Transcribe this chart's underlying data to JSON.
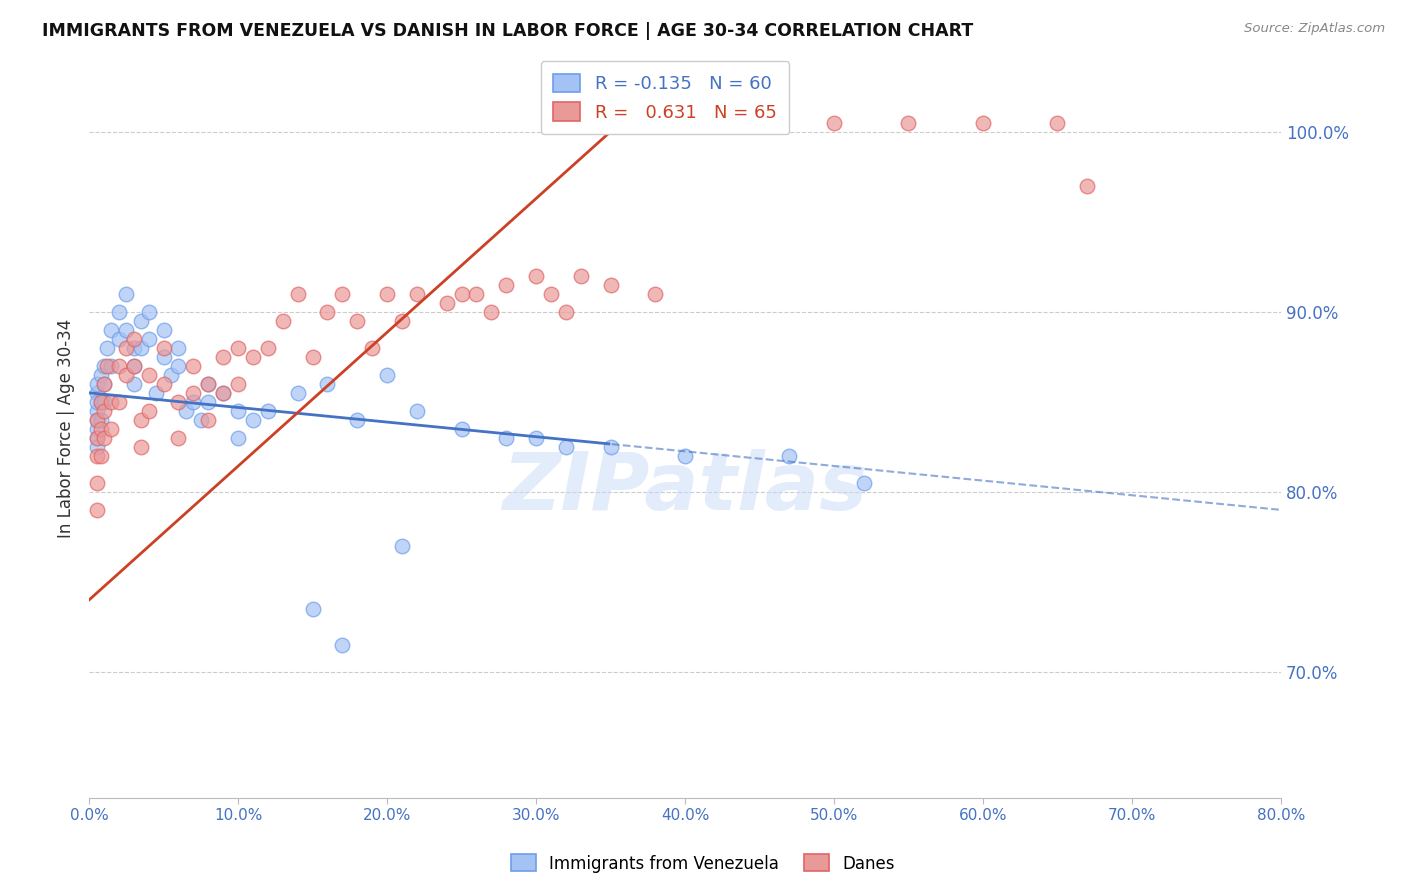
{
  "title": "IMMIGRANTS FROM VENEZUELA VS DANISH IN LABOR FORCE | AGE 30-34 CORRELATION CHART",
  "source": "Source: ZipAtlas.com",
  "ylabel": "In Labor Force | Age 30-34",
  "x_tick_labels": [
    "0.0%",
    "10.0%",
    "20.0%",
    "30.0%",
    "40.0%",
    "50.0%",
    "60.0%",
    "70.0%",
    "80.0%"
  ],
  "x_tick_vals": [
    0,
    10,
    20,
    30,
    40,
    50,
    60,
    70,
    80
  ],
  "y_tick_labels": [
    "70.0%",
    "80.0%",
    "90.0%",
    "100.0%"
  ],
  "y_tick_vals": [
    70,
    80,
    90,
    100
  ],
  "xlim": [
    0,
    80
  ],
  "ylim": [
    63,
    104
  ],
  "blue_label": "Immigrants from Venezuela",
  "pink_label": "Danes",
  "blue_R": "-0.135",
  "blue_N": "60",
  "pink_R": "0.631",
  "pink_N": "65",
  "blue_color": "#a4c2f4",
  "pink_color": "#ea9999",
  "blue_edge_color": "#6d9eeb",
  "pink_edge_color": "#e06666",
  "blue_line_color": "#4472c4",
  "pink_line_color": "#cc4125",
  "watermark": "ZIPatlas",
  "watermark_color": "#c9daf8",
  "blue_solid_end": 35,
  "pink_solid_end": 35,
  "blue_scatter_x": [
    0.5,
    0.5,
    0.5,
    0.5,
    0.5,
    0.5,
    0.5,
    0.5,
    0.8,
    0.8,
    0.8,
    1.0,
    1.0,
    1.0,
    1.2,
    1.5,
    1.5,
    2.0,
    2.0,
    2.5,
    2.5,
    3.0,
    3.0,
    3.0,
    3.5,
    3.5,
    4.0,
    4.0,
    4.5,
    5.0,
    5.0,
    5.5,
    6.0,
    6.0,
    6.5,
    7.0,
    7.5,
    8.0,
    8.0,
    9.0,
    10.0,
    10.0,
    11.0,
    12.0,
    14.0,
    15.0,
    16.0,
    17.0,
    18.0,
    20.0,
    21.0,
    22.0,
    25.0,
    28.0,
    30.0,
    32.0,
    35.0,
    40.0,
    47.0,
    52.0
  ],
  "blue_scatter_y": [
    85.5,
    84.5,
    83.5,
    85.0,
    86.0,
    84.0,
    83.0,
    82.5,
    86.5,
    85.0,
    84.0,
    87.0,
    86.0,
    85.0,
    88.0,
    89.0,
    87.0,
    90.0,
    88.5,
    91.0,
    89.0,
    88.0,
    87.0,
    86.0,
    89.5,
    88.0,
    90.0,
    88.5,
    85.5,
    89.0,
    87.5,
    86.5,
    88.0,
    87.0,
    84.5,
    85.0,
    84.0,
    86.0,
    85.0,
    85.5,
    84.5,
    83.0,
    84.0,
    84.5,
    85.5,
    73.5,
    86.0,
    71.5,
    84.0,
    86.5,
    77.0,
    84.5,
    83.5,
    83.0,
    83.0,
    82.5,
    82.5,
    82.0,
    82.0,
    80.5
  ],
  "pink_scatter_x": [
    0.5,
    0.5,
    0.5,
    0.5,
    0.5,
    0.8,
    0.8,
    0.8,
    1.0,
    1.0,
    1.0,
    1.2,
    1.5,
    1.5,
    2.0,
    2.0,
    2.5,
    2.5,
    3.0,
    3.0,
    3.5,
    3.5,
    4.0,
    4.0,
    5.0,
    5.0,
    6.0,
    6.0,
    7.0,
    7.0,
    8.0,
    8.0,
    9.0,
    9.0,
    10.0,
    10.0,
    11.0,
    12.0,
    13.0,
    14.0,
    15.0,
    16.0,
    17.0,
    18.0,
    19.0,
    20.0,
    21.0,
    22.0,
    24.0,
    25.0,
    26.0,
    27.0,
    28.0,
    30.0,
    31.0,
    32.0,
    33.0,
    35.0,
    38.0,
    40.0,
    50.0,
    55.0,
    60.0,
    65.0,
    67.0
  ],
  "pink_scatter_y": [
    84.0,
    83.0,
    82.0,
    80.5,
    79.0,
    85.0,
    83.5,
    82.0,
    86.0,
    84.5,
    83.0,
    87.0,
    85.0,
    83.5,
    87.0,
    85.0,
    88.0,
    86.5,
    88.5,
    87.0,
    84.0,
    82.5,
    86.5,
    84.5,
    88.0,
    86.0,
    85.0,
    83.0,
    87.0,
    85.5,
    86.0,
    84.0,
    87.5,
    85.5,
    88.0,
    86.0,
    87.5,
    88.0,
    89.5,
    91.0,
    87.5,
    90.0,
    91.0,
    89.5,
    88.0,
    91.0,
    89.5,
    91.0,
    90.5,
    91.0,
    91.0,
    90.0,
    91.5,
    92.0,
    91.0,
    90.0,
    92.0,
    91.5,
    91.0,
    100.5,
    100.5,
    100.5,
    100.5,
    100.5,
    97.0
  ]
}
